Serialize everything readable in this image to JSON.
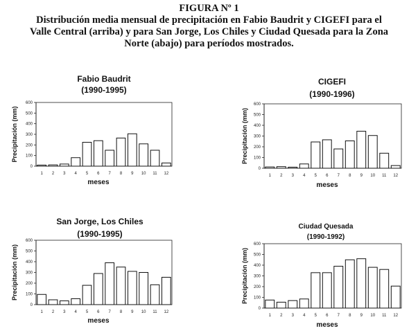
{
  "figure": {
    "heading": "FIGURA Nº 1",
    "caption_lines": [
      "Distribución media mensual de precipitación en Fabio Baudrit y CIGEFI para el",
      "Valle Central (arriba) y para San Jorge, Los Chiles y Ciudad Quesada para la Zona",
      "Norte (abajo) para períodos mostrados."
    ]
  },
  "chart_data": [
    {
      "type": "bar",
      "title": "Fabio Baudrit",
      "subtitle": "(1990-1995)",
      "xlabel": "meses",
      "ylabel": "Precipitación (mm)",
      "categories": [
        "1",
        "2",
        "3",
        "4",
        "5",
        "6",
        "7",
        "8",
        "9",
        "10",
        "11",
        "12"
      ],
      "values": [
        10,
        12,
        20,
        80,
        225,
        240,
        150,
        265,
        305,
        210,
        150,
        30
      ],
      "ylim": [
        0,
        600
      ],
      "yticks": [
        "0",
        "100",
        "200",
        "300",
        "400",
        "500",
        "600"
      ],
      "grid": false
    },
    {
      "type": "bar",
      "title": "CIGEFI",
      "subtitle": "(1990-1996)",
      "xlabel": "meses",
      "ylabel": "Precipitación (mm)",
      "categories": [
        "1",
        "2",
        "3",
        "4",
        "5",
        "6",
        "7",
        "8",
        "9",
        "10",
        "11",
        "12"
      ],
      "values": [
        12,
        15,
        10,
        40,
        245,
        265,
        180,
        255,
        345,
        305,
        140,
        25
      ],
      "ylim": [
        0,
        600
      ],
      "yticks": [
        "0",
        "100",
        "200",
        "300",
        "400",
        "500",
        "600"
      ],
      "grid": false
    },
    {
      "type": "bar",
      "title": "San Jorge, Los Chiles",
      "subtitle": "(1990-1995)",
      "xlabel": "meses",
      "ylabel": "Precipitación (mm)",
      "categories": [
        "1",
        "2",
        "3",
        "4",
        "5",
        "6",
        "7",
        "8",
        "9",
        "10",
        "11",
        "12"
      ],
      "values": [
        95,
        45,
        35,
        55,
        180,
        290,
        390,
        350,
        310,
        300,
        185,
        255
      ],
      "ylim": [
        0,
        600
      ],
      "yticks": [
        "0",
        "100",
        "200",
        "300",
        "400",
        "500",
        "600"
      ],
      "grid": false
    },
    {
      "type": "bar",
      "title": "Ciudad Quesada",
      "subtitle": "(1990-1992)",
      "xlabel": "meses",
      "ylabel": "Precipitación (mm)",
      "categories": [
        "1",
        "2",
        "3",
        "4",
        "5",
        "6",
        "7",
        "8",
        "9",
        "10",
        "11",
        "12"
      ],
      "values": [
        75,
        55,
        70,
        85,
        330,
        330,
        390,
        450,
        460,
        380,
        360,
        205
      ],
      "ylim": [
        0,
        600
      ],
      "yticks": [
        "0",
        "100",
        "200",
        "300",
        "400",
        "500",
        "600"
      ],
      "grid": false
    }
  ]
}
